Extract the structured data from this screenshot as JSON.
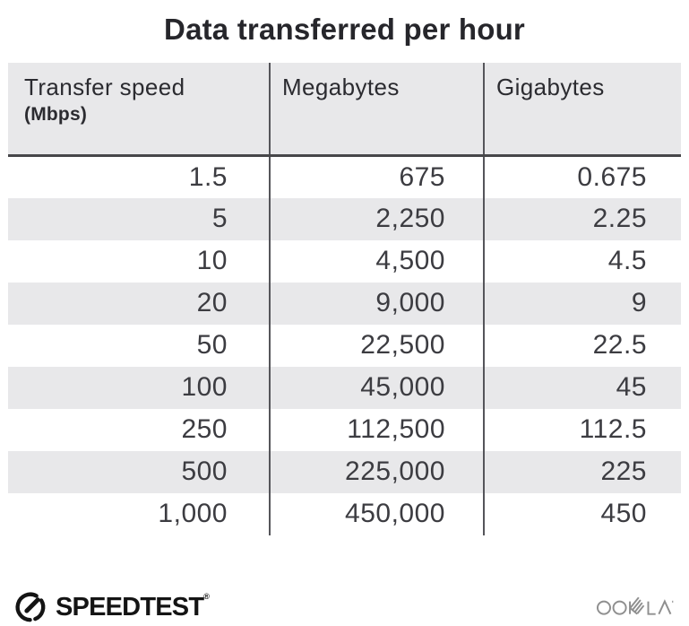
{
  "title": "Data transferred per hour",
  "table": {
    "headers": [
      {
        "label": "Transfer speed",
        "sublabel": "(Mbps)"
      },
      {
        "label": "Megabytes"
      },
      {
        "label": "Gigabytes"
      }
    ],
    "rows": [
      [
        "1.5",
        "675",
        "0.675"
      ],
      [
        "5",
        "2,250",
        "2.25"
      ],
      [
        "10",
        "4,500",
        "4.5"
      ],
      [
        "20",
        "9,000",
        "9"
      ],
      [
        "50",
        "22,500",
        "22.5"
      ],
      [
        "100",
        "45,000",
        "45"
      ],
      [
        "250",
        "112,500",
        "112.5"
      ],
      [
        "500",
        "225,000",
        "225"
      ],
      [
        "1,000",
        "450,000",
        "450"
      ]
    ]
  },
  "footer": {
    "speedtest_label": "SPEEDTEST",
    "speedtest_trademark": "®",
    "ookla_label": "OOKLA"
  },
  "colors": {
    "header_bg": "#e8e8ea",
    "row_alt_bg": "#e8e8ea",
    "vertical_divider": "#55555a",
    "header_underline": "#47474a",
    "cell_text": "#3c3c41",
    "title_text": "#26262b",
    "brand_black": "#141414",
    "ookla_gray": "#8f8f8f"
  },
  "chart_data": {
    "type": "table",
    "title": "Data transferred per hour",
    "columns": [
      "Transfer speed (Mbps)",
      "Megabytes",
      "Gigabytes"
    ],
    "rows": [
      [
        1.5,
        675,
        0.675
      ],
      [
        5,
        2250,
        2.25
      ],
      [
        10,
        4500,
        4.5
      ],
      [
        20,
        9000,
        9
      ],
      [
        50,
        22500,
        22.5
      ],
      [
        100,
        45000,
        45
      ],
      [
        250,
        112500,
        112.5
      ],
      [
        500,
        225000,
        225
      ],
      [
        1000,
        450000,
        450
      ]
    ],
    "layout": "alternating row shading, right-aligned numeric cells, vertical column dividers"
  }
}
